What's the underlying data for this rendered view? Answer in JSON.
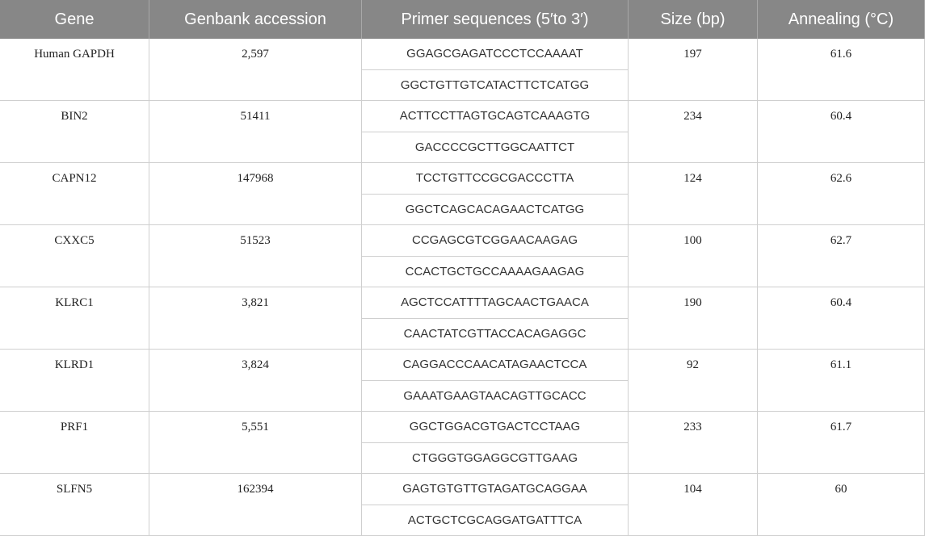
{
  "table": {
    "header": [
      "Gene",
      "Genbank accession",
      "Primer sequences (5′to 3′)",
      "Size (bp)",
      "Annealing (°C)"
    ],
    "rows": [
      {
        "gene": "Human GAPDH",
        "accession": "2,597",
        "primers": [
          "GGAGCGAGATCCCTCCAAAAT",
          "GGCTGTTGTCATACTTCTCATGG"
        ],
        "size": "197",
        "annealing": "61.6"
      },
      {
        "gene": "BIN2",
        "accession": "51411",
        "primers": [
          "ACTTCCTTAGTGCAGTCAAAGTG",
          "GACCCCGCTTGGCAATTCT"
        ],
        "size": "234",
        "annealing": "60.4"
      },
      {
        "gene": "CAPN12",
        "accession": "147968",
        "primers": [
          "TCCTGTTCCGCGACCCTTA",
          "GGCTCAGCACAGAACTCATGG"
        ],
        "size": "124",
        "annealing": "62.6"
      },
      {
        "gene": "CXXC5",
        "accession": "51523",
        "primers": [
          "CCGAGCGTCGGAACAAGAG",
          "CCACTGCTGCCAAAAGAAGAG"
        ],
        "size": "100",
        "annealing": "62.7"
      },
      {
        "gene": "KLRC1",
        "accession": "3,821",
        "primers": [
          "AGCTCCATTTTAGCAACTGAACA",
          "CAACTATCGTTACCACAGAGGC"
        ],
        "size": "190",
        "annealing": "60.4"
      },
      {
        "gene": "KLRD1",
        "accession": "3,824",
        "primers": [
          "CAGGACCCAACATAGAACTCCA",
          "GAAATGAAGTAACAGTTGCACC"
        ],
        "size": "92",
        "annealing": "61.1"
      },
      {
        "gene": "PRF1",
        "accession": "5,551",
        "primers": [
          "GGCTGGACGTGACTCCTAAG",
          "CTGGGTGGAGGCGTTGAAG"
        ],
        "size": "233",
        "annealing": "61.7"
      },
      {
        "gene": "SLFN5",
        "accession": "162394",
        "primers": [
          "GAGTGTGTTGTAGATGCAGGAA",
          "ACTGCTCGCAGGATGATTTCA"
        ],
        "size": "104",
        "annealing": "60"
      }
    ]
  }
}
